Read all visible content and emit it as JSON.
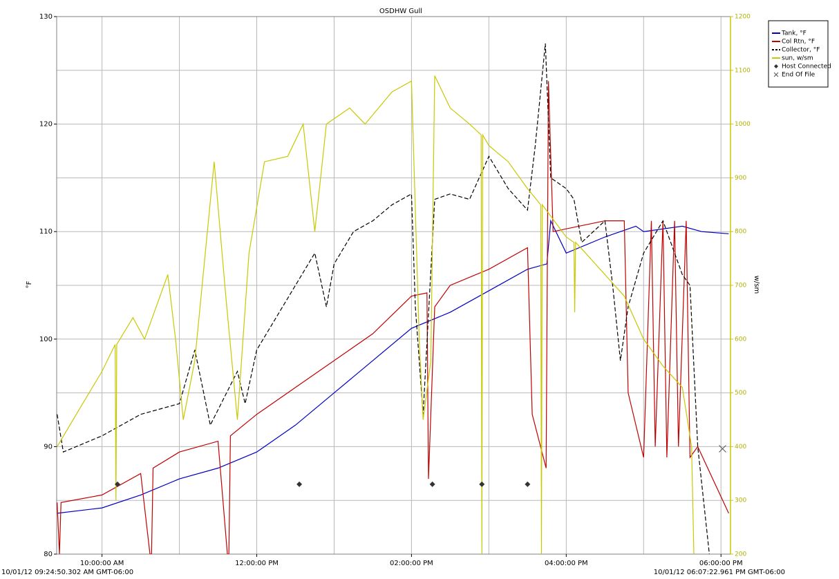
{
  "chart_data": {
    "type": "line",
    "title": "OSDHW Gull",
    "ylabel": "°F",
    "y2label": "w/sm",
    "start_label": "10/01/12 09:24:50.302 AM GMT-06:00",
    "end_label": "10/01/12 06:07:22.961 PM GMT-06:00",
    "xlim": [
      9.414,
      18.123
    ],
    "xticks": [
      {
        "value": 10,
        "label": "10:00:00 AM"
      },
      {
        "value": 12,
        "label": "12:00:00 PM"
      },
      {
        "value": 14,
        "label": "02:00:00 PM"
      },
      {
        "value": 16,
        "label": "04:00:00 PM"
      },
      {
        "value": 18,
        "label": "06:00:00 PM"
      }
    ],
    "xgrid": [
      10,
      11,
      12,
      13,
      14,
      15,
      16,
      17,
      18
    ],
    "ylim": [
      80,
      130
    ],
    "yticks": [
      80,
      90,
      100,
      110,
      120,
      130
    ],
    "y2lim": [
      200,
      1200
    ],
    "y2ticks": [
      200,
      300,
      400,
      500,
      600,
      700,
      800,
      900,
      1000,
      1100,
      1200
    ],
    "grid": true,
    "legend": "top-right",
    "series": [
      {
        "name": "Tank, °F",
        "color": "#0000c0",
        "dash": false,
        "x": [
          9.42,
          10,
          10.5,
          11,
          11.5,
          12,
          12.5,
          13,
          13.5,
          14,
          14.5,
          15,
          15.5,
          15.75,
          15.8,
          16,
          16.5,
          16.9,
          17,
          17.5,
          17.75,
          18.1
        ],
        "values": [
          83.8,
          84.3,
          85.5,
          87,
          88,
          89.5,
          92,
          95,
          98,
          101,
          102.5,
          104.5,
          106.5,
          107,
          111,
          108,
          109.5,
          110.5,
          110,
          110.5,
          110,
          109.8
        ]
      },
      {
        "name": "Col Rtn, °F",
        "color": "#c00000",
        "dash": false,
        "x": [
          9.42,
          9.45,
          9.47,
          10,
          10.5,
          10.62,
          10.64,
          10.66,
          11,
          11.5,
          11.62,
          11.64,
          11.66,
          12,
          12.5,
          13,
          13.5,
          14,
          14.2,
          14.22,
          14.3,
          14.5,
          15,
          15.5,
          15.56,
          15.74,
          15.77,
          15.83,
          16.5,
          16.75,
          16.8,
          17,
          17.1,
          17.15,
          17.25,
          17.3,
          17.4,
          17.45,
          17.55,
          17.6,
          17.7,
          18.1
        ],
        "values": [
          84.8,
          80,
          84.8,
          85.5,
          87.5,
          80,
          80,
          88,
          89.5,
          90.5,
          80,
          80,
          91,
          93,
          95.5,
          98,
          100.5,
          104,
          104.3,
          87,
          103,
          105,
          106.5,
          108.5,
          93,
          88,
          124,
          110,
          111,
          111,
          95,
          89,
          111,
          90,
          111,
          89,
          111,
          90,
          111,
          89,
          90,
          83.8
        ]
      },
      {
        "name": "Collector, °F",
        "color": "#000000",
        "dash": true,
        "x": [
          9.42,
          9.5,
          10,
          10.5,
          11,
          11.2,
          11.4,
          11.75,
          11.85,
          12,
          12.5,
          12.75,
          12.9,
          13,
          13.25,
          13.5,
          13.75,
          14,
          14.05,
          14.15,
          14.3,
          14.5,
          14.75,
          15,
          15.25,
          15.5,
          15.6,
          15.73,
          15.8,
          16,
          16.1,
          16.2,
          16.5,
          16.6,
          16.7,
          16.8,
          17,
          17.25,
          17.5,
          17.6,
          17.7,
          17.85
        ],
        "values": [
          93,
          89.5,
          91,
          93,
          94,
          99,
          92,
          97,
          94,
          99,
          105,
          108,
          103,
          107,
          110,
          111,
          112.5,
          113.5,
          103,
          93,
          113,
          113.5,
          113,
          117,
          114,
          112,
          118,
          127.5,
          115,
          114,
          113,
          109,
          111,
          105,
          98,
          103,
          108,
          111,
          106,
          105,
          90,
          80
        ]
      },
      {
        "name": "sun, w/sm",
        "color": "#c8c800",
        "dash": false,
        "axis": "y2",
        "x": [
          9.42,
          9.75,
          10,
          10.17,
          10.18,
          10.19,
          10.4,
          10.55,
          10.75,
          10.85,
          10.95,
          11.05,
          11.2,
          11.45,
          11.6,
          11.75,
          11.9,
          12.1,
          12.4,
          12.6,
          12.75,
          12.9,
          13.2,
          13.4,
          13.75,
          14,
          14.1,
          14.15,
          14.25,
          14.3,
          14.5,
          14.75,
          14.9,
          14.91,
          14.92,
          15,
          15.25,
          15.5,
          15.67,
          15.68,
          15.69,
          16,
          16.1,
          16.11,
          16.12,
          16.25,
          16.5,
          16.75,
          17,
          17.25,
          17.5,
          17.62,
          17.65
        ],
        "values": [
          400,
          480,
          540,
          590,
          300,
          590,
          640,
          600,
          680,
          720,
          600,
          450,
          560,
          930,
          680,
          450,
          760,
          930,
          940,
          1000,
          800,
          1000,
          1030,
          1000,
          1060,
          1080,
          600,
          450,
          560,
          1090,
          1030,
          1000,
          980,
          200,
          980,
          960,
          930,
          880,
          850,
          200,
          850,
          790,
          780,
          650,
          780,
          760,
          720,
          680,
          600,
          550,
          510,
          400,
          200
        ]
      }
    ],
    "markers": [
      {
        "name": "Host Connected",
        "symbol": "diamond",
        "x": [
          10.2,
          12.55,
          14.27,
          14.91,
          15.5
        ],
        "values": [
          86.5,
          86.5,
          86.5,
          86.5,
          86.5
        ]
      },
      {
        "name": "End Of File",
        "symbol": "cross",
        "x": [
          18.02
        ],
        "values": [
          89.8
        ]
      }
    ]
  }
}
